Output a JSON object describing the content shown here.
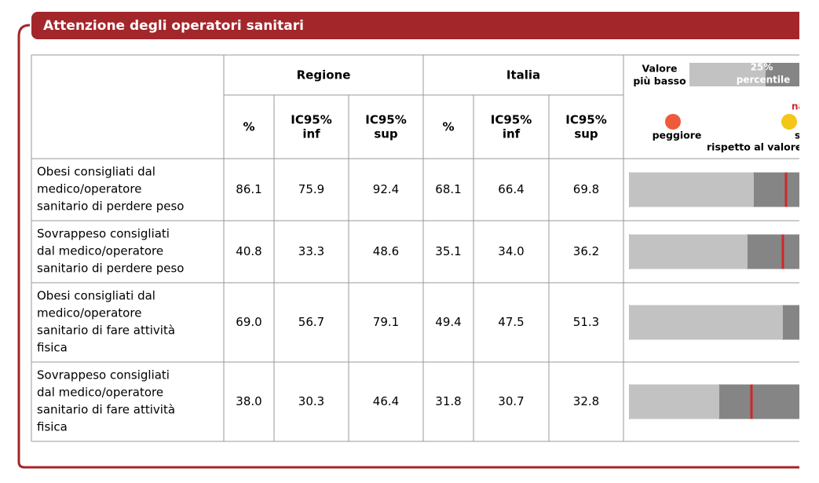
{
  "header": {
    "title": "Attenzione degli operatori sanitari"
  },
  "table": {
    "group_headers": [
      "Regione",
      "Italia"
    ],
    "column_headers": [
      [
        "%"
      ],
      [
        "IC95%",
        "inf"
      ],
      [
        "IC95%",
        "sup"
      ],
      [
        "%"
      ],
      [
        "IC95%",
        "inf"
      ],
      [
        "IC95%",
        "sup"
      ]
    ],
    "rows": [
      {
        "label": [
          "Obesi consigliati dal",
          "medico/operatore",
          "sanitario di perdere peso"
        ],
        "cells": [
          "86.1",
          "75.9",
          "92.4",
          "68.1",
          "66.4",
          "69.8"
        ]
      },
      {
        "label": [
          "Sovrappeso consigliati",
          "dal medico/operatore",
          "sanitario di perdere peso"
        ],
        "cells": [
          "40.8",
          "33.3",
          "48.6",
          "35.1",
          "34.0",
          "36.2"
        ]
      },
      {
        "label": [
          "Obesi consigliati dal",
          "medico/operatore",
          "sanitario di fare attività",
          "fisica"
        ],
        "cells": [
          "69.0",
          "56.7",
          "79.1",
          "49.4",
          "47.5",
          "51.3"
        ]
      },
      {
        "label": [
          "Sovrappeso consigliati",
          "dal medico/operatore",
          "sanitario di fare attività",
          "fisica"
        ],
        "cells": [
          "38.0",
          "30.3",
          "46.4",
          "31.8",
          "30.7",
          "32.8"
        ]
      }
    ]
  },
  "legend": {
    "low_value": [
      "Valore",
      "più basso"
    ],
    "percentile": [
      "25%",
      "percentile"
    ],
    "worse": "peggiore",
    "na": "na",
    "similar": "simil",
    "reference": "rispetto al valore"
  }
}
